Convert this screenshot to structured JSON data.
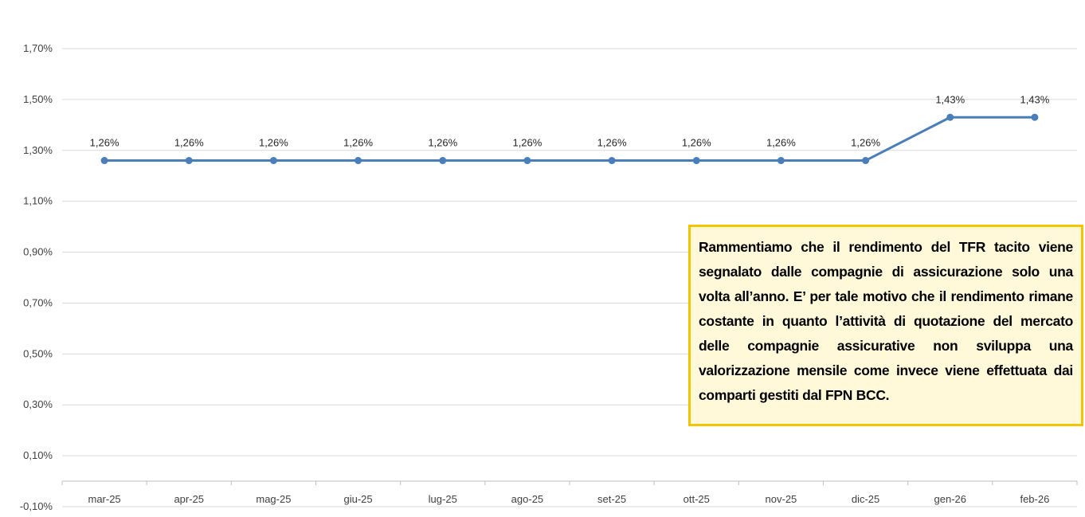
{
  "chart_data": {
    "type": "line",
    "categories": [
      "mar-25",
      "apr-25",
      "mag-25",
      "giu-25",
      "lug-25",
      "ago-25",
      "set-25",
      "ott-25",
      "nov-25",
      "dic-25",
      "gen-26",
      "feb-26"
    ],
    "series": [
      {
        "values": [
          1.26,
          1.26,
          1.26,
          1.26,
          1.26,
          1.26,
          1.26,
          1.26,
          1.26,
          1.26,
          1.43,
          1.43
        ],
        "data_labels": [
          "1,26%",
          "1,26%",
          "1,26%",
          "1,26%",
          "1,26%",
          "1,26%",
          "1,26%",
          "1,26%",
          "1,26%",
          "1,26%",
          "1,43%",
          "1,43%"
        ],
        "color": "#4a7ebb"
      }
    ],
    "yticks": [
      -0.1,
      0.1,
      0.3,
      0.5,
      0.7,
      0.9,
      1.1,
      1.3,
      1.5,
      1.7
    ],
    "ytick_labels": [
      "-0,10%",
      "0,10%",
      "0,30%",
      "0,50%",
      "0,70%",
      "0,90%",
      "1,10%",
      "1,30%",
      "1,50%",
      "1,70%"
    ],
    "ylim": [
      -0.1,
      1.7
    ],
    "grid": true,
    "legend": "none",
    "title": "",
    "xlabel": "",
    "ylabel": ""
  },
  "note": {
    "text": "Rammentiamo che il rendimento del TFR tacito viene segnalato dalle compagnie di assicurazione solo una volta all’anno. E’ per tale motivo che il rendimento rimane costante in quanto l’attività di quotazione del mercato delle compagnie assicurative non sviluppa una valorizzazione mensile come invece viene effettuata dai comparti gestiti dal FPN BCC.",
    "border_color": "#f5c400",
    "background_color": "#fff9d9"
  }
}
